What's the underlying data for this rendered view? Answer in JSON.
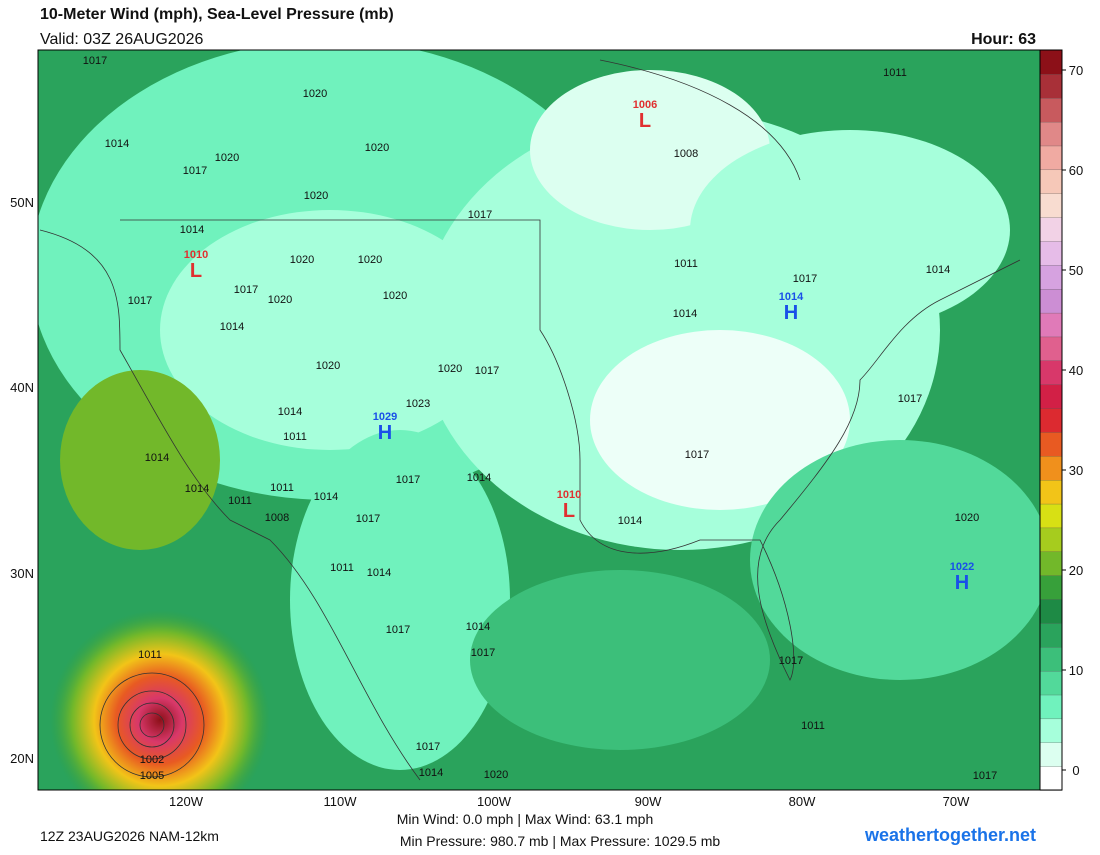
{
  "header": {
    "title": "10-Meter Wind (mph), Sea-Level Pressure (mb)",
    "valid": "Valid: 03Z 26AUG2026",
    "hour": "Hour: 63"
  },
  "lat_labels": [
    "50N",
    "40N",
    "30N",
    "20N"
  ],
  "lon_labels": [
    "120W",
    "110W",
    "100W",
    "90W",
    "80W",
    "70W"
  ],
  "colorbar": {
    "range": [
      -2,
      72
    ],
    "ticks": [
      0,
      10,
      20,
      30,
      40,
      50,
      60,
      70
    ],
    "colors": [
      "#ffffff",
      "#dcfff0",
      "#a6ffdb",
      "#70f2bd",
      "#52d99a",
      "#3cbf7a",
      "#2aa35c",
      "#1e8a45",
      "#37a03a",
      "#72b82a",
      "#a6cc1e",
      "#d8e014",
      "#f2c418",
      "#f0901c",
      "#e85a22",
      "#dc2a30",
      "#d22046",
      "#d8386a",
      "#e0608e",
      "#e07ab8",
      "#cc8ed4",
      "#d6a2e0",
      "#e6bce8",
      "#f2d2e6",
      "#f8dcd0",
      "#f6c8b8",
      "#f0aaa2",
      "#e08888",
      "#c85a5e",
      "#a83038",
      "#8c1018"
    ]
  },
  "isobars": [
    "1017",
    "1020",
    "1020",
    "1014",
    "1020",
    "1017",
    "1020",
    "1017",
    "1014",
    "1020",
    "1020",
    "1017",
    "1020",
    "1020",
    "1017",
    "1014",
    "1020",
    "1020",
    "1017",
    "1023",
    "1014",
    "1011",
    "1014",
    "1017",
    "1014",
    "1014",
    "1011",
    "1011",
    "1014",
    "1017",
    "1008",
    "1011",
    "1014",
    "1017",
    "1014",
    "1017",
    "1011",
    "1002",
    "1005",
    "1017",
    "1014",
    "1020",
    "1008",
    "1011",
    "1011",
    "1014",
    "1017",
    "1014",
    "1017",
    "1017",
    "1014",
    "1020",
    "1017",
    "1017",
    "1011"
  ],
  "centers": [
    {
      "symbol": "L",
      "value": "1006"
    },
    {
      "symbol": "L",
      "value": "1010"
    },
    {
      "symbol": "H",
      "value": "1029"
    },
    {
      "symbol": "H",
      "value": "1014"
    },
    {
      "symbol": "L",
      "value": "1010"
    },
    {
      "symbol": "H",
      "value": "1022"
    }
  ],
  "footer": {
    "run": "12Z 23AUG2026 NAM-12km",
    "wind_stats": "Min Wind:  0.0 mph | Max Wind: 63.1 mph",
    "pressure_stats": "Min Pressure: 980.7 mb | Max Pressure: 1029.5 mb",
    "site": "weathertogether.net"
  }
}
